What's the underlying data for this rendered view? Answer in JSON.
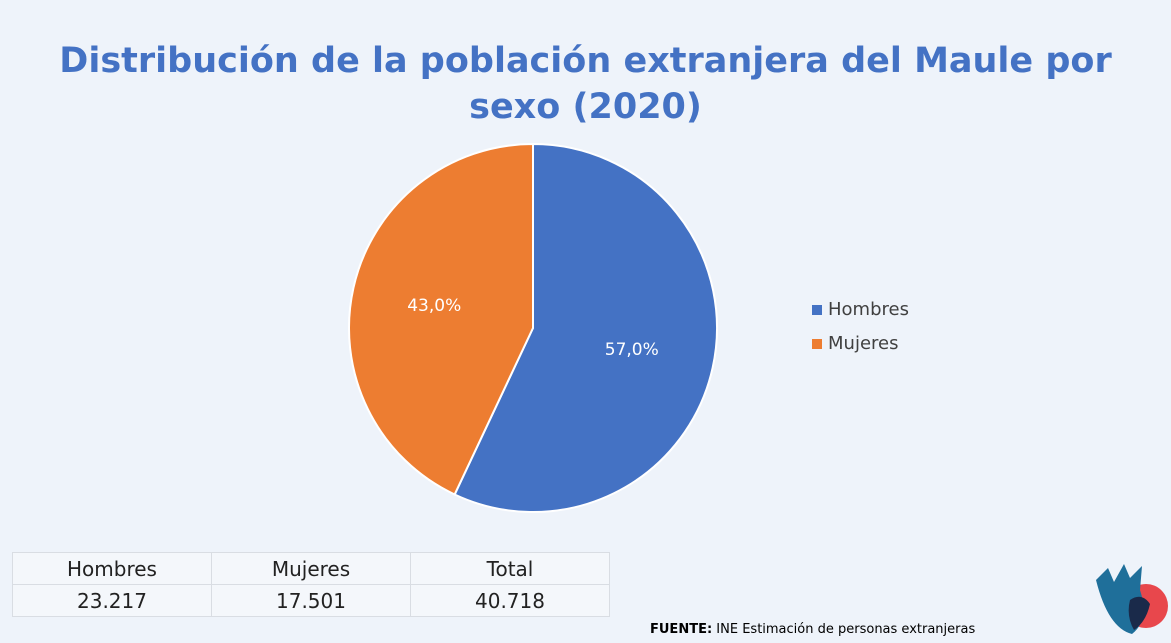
{
  "chart_data": {
    "type": "pie",
    "title": "Distribución de la población extranjera del Maule por sexo (2020)",
    "categories": [
      "Hombres",
      "Mujeres"
    ],
    "values": [
      57.0,
      43.0
    ],
    "value_labels": [
      "57,0%",
      "43,0%"
    ],
    "colors": [
      "#4472c4",
      "#ed7d31"
    ],
    "legend": "right"
  },
  "table": {
    "header": [
      "Hombres",
      "Mujeres",
      "Total"
    ],
    "rows": [
      [
        "23.217",
        "17.501",
        "40.718"
      ]
    ]
  },
  "source": {
    "label": "FUENTE:",
    "text": "INE Estimación de personas extranjeras"
  }
}
